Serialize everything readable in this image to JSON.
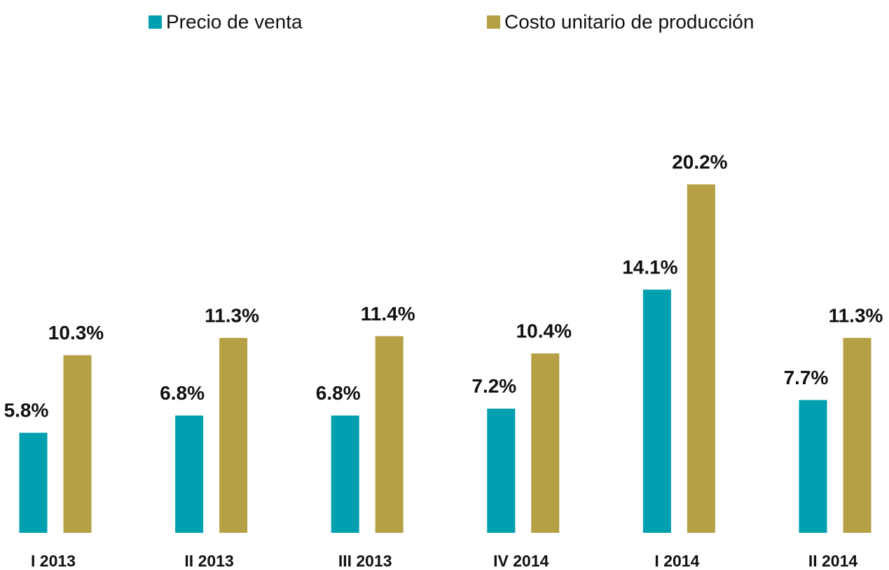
{
  "chart_data": {
    "type": "bar",
    "categories": [
      "I 2013",
      "II 2013",
      "III 2013",
      "IV 2014",
      "I 2014",
      "II 2014"
    ],
    "series": [
      {
        "name": "Precio de venta",
        "color": "#00a0b0",
        "values": [
          5.8,
          6.8,
          6.8,
          7.2,
          14.1,
          7.7
        ],
        "value_labels": [
          "5.8%",
          "6.8%",
          "6.8%",
          "7.2%",
          "14.1%",
          "7.7%"
        ]
      },
      {
        "name": "Costo unitario de producción",
        "color": "#b5a045",
        "values": [
          10.3,
          11.3,
          11.4,
          10.4,
          20.2,
          11.3
        ],
        "value_labels": [
          "10.3%",
          "11.3%",
          "11.4%",
          "10.4%",
          "20.2%",
          "11.3%"
        ]
      }
    ],
    "legend": "top"
  }
}
